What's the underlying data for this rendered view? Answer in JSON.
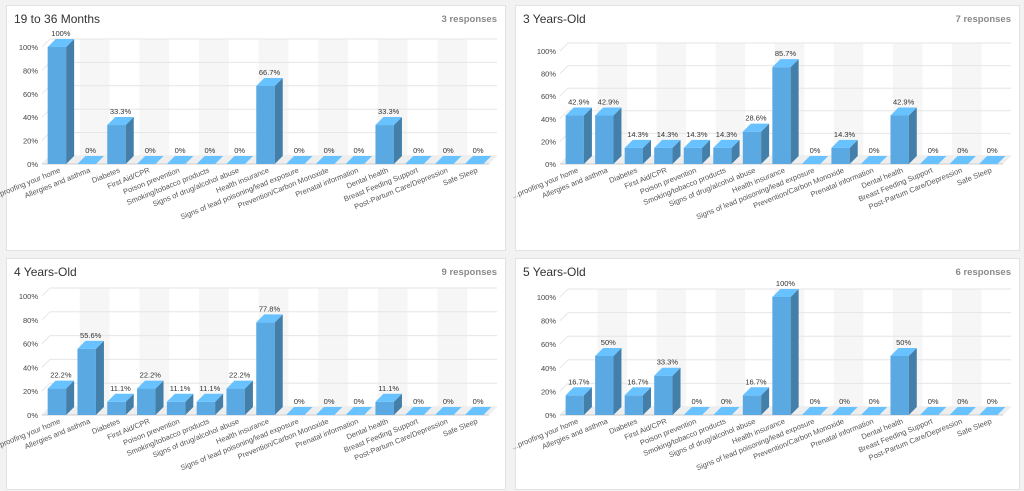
{
  "panels": [
    {
      "title": "19 to 36 Months",
      "responses": "3 responses",
      "chart_data": {
        "type": "bar",
        "categories": [
          "...proofing your home",
          "Allergies and asthma",
          "Diabetes",
          "First Aid/CPR",
          "Poison prevention",
          "Smoking/tobacco products",
          "Signs of drug/alcohol abuse",
          "Health insurance",
          "Signs of lead poisoning/lead exposure",
          "Prevention/Carbon Monoxide",
          "Prenatal information",
          "Dental health",
          "Breast Feeding Support",
          "Post-Partum Care/Depression",
          "Safe Sleep"
        ],
        "values": [
          100,
          0,
          33.3,
          0,
          0,
          0,
          0,
          66.7,
          0,
          0,
          0,
          33.3,
          0,
          0,
          0
        ],
        "value_labels": [
          "100%",
          "0%",
          "33.3%",
          "0%",
          "0%",
          "0%",
          "0%",
          "66.7%",
          "0%",
          "0%",
          "0%",
          "33.3%",
          "0%",
          "0%",
          "0%"
        ],
        "yticks": [
          "0%",
          "20%",
          "40%",
          "60%",
          "80%",
          "100%"
        ],
        "ylim": [
          0,
          100
        ],
        "grid": true,
        "color": "#5aa9e2"
      }
    },
    {
      "title": "3 Years-Old",
      "responses": "7 responses",
      "chart_data": {
        "type": "bar",
        "categories": [
          "...proofing your home",
          "Allergies and asthma",
          "Diabetes",
          "First Aid/CPR",
          "Poison prevention",
          "Smoking/tobacco products",
          "Signs of drug/alcohol abuse",
          "Health insurance",
          "Signs of lead poisoning/lead exposure",
          "Prevention/Carbon Monoxide",
          "Prenatal information",
          "Dental health",
          "Breast Feeding Support",
          "Post-Partum Care/Depression",
          "Safe Sleep"
        ],
        "values": [
          42.9,
          42.9,
          14.3,
          14.3,
          14.3,
          14.3,
          28.6,
          85.7,
          0,
          14.3,
          0,
          42.9,
          0,
          0,
          0
        ],
        "value_labels": [
          "42.9%",
          "42.9%",
          "14.3%",
          "14.3%",
          "14.3%",
          "14.3%",
          "28.6%",
          "85.7%",
          "0%",
          "14.3%",
          "0%",
          "42.9%",
          "0%",
          "0%",
          "0%"
        ],
        "yticks": [
          "0%",
          "20%",
          "40%",
          "60%",
          "80%",
          "100%"
        ],
        "ylim": [
          0,
          100
        ],
        "grid": true,
        "color": "#5aa9e2"
      }
    },
    {
      "title": "4 Years-Old",
      "responses": "9 responses",
      "chart_data": {
        "type": "bar",
        "categories": [
          "...proofing your home",
          "Allergies and asthma",
          "Diabetes",
          "First Aid/CPR",
          "Poison prevention",
          "Smoking/tobacco products",
          "Signs of drug/alcohol abuse",
          "Health insurance",
          "Signs of lead poisoning/lead exposure",
          "Prevention/Carbon Monoxide",
          "Prenatal information",
          "Dental health",
          "Breast Feeding Support",
          "Post-Partum Care/Depression",
          "Safe Sleep"
        ],
        "values": [
          22.2,
          55.6,
          11.1,
          22.2,
          11.1,
          11.1,
          22.2,
          77.8,
          0,
          0,
          0,
          11.1,
          0,
          0,
          0
        ],
        "value_labels": [
          "22.2%",
          "55.6%",
          "11.1%",
          "22.2%",
          "11.1%",
          "11.1%",
          "22.2%",
          "77.8%",
          "0%",
          "0%",
          "0%",
          "11.1%",
          "0%",
          "0%",
          "0%"
        ],
        "yticks": [
          "0%",
          "20%",
          "40%",
          "60%",
          "80%",
          "100%"
        ],
        "ylim": [
          0,
          100
        ],
        "grid": true,
        "color": "#5aa9e2"
      }
    },
    {
      "title": "5 Years-Old",
      "responses": "6 responses",
      "chart_data": {
        "type": "bar",
        "categories": [
          "...proofing your home",
          "Allergies and asthma",
          "Diabetes",
          "First Aid/CPR",
          "Poison prevention",
          "Smoking/tobacco products",
          "Signs of drug/alcohol abuse",
          "Health insurance",
          "Signs of lead poisoning/lead exposure",
          "Prevention/Carbon Monoxide",
          "Prenatal information",
          "Dental health",
          "Breast Feeding Support",
          "Post-Partum Care/Depression",
          "Safe Sleep"
        ],
        "values": [
          16.7,
          50,
          16.7,
          33.3,
          0,
          0,
          16.7,
          100,
          0,
          0,
          0,
          50,
          0,
          0,
          0
        ],
        "value_labels": [
          "16.7%",
          "50%",
          "16.7%",
          "33.3%",
          "0%",
          "0%",
          "16.7%",
          "100%",
          "0%",
          "0%",
          "0%",
          "50%",
          "0%",
          "0%",
          "0%"
        ],
        "yticks": [
          "0%",
          "20%",
          "40%",
          "60%",
          "80%",
          "100%"
        ],
        "ylim": [
          0,
          100
        ],
        "grid": true,
        "color": "#5aa9e2"
      }
    }
  ]
}
